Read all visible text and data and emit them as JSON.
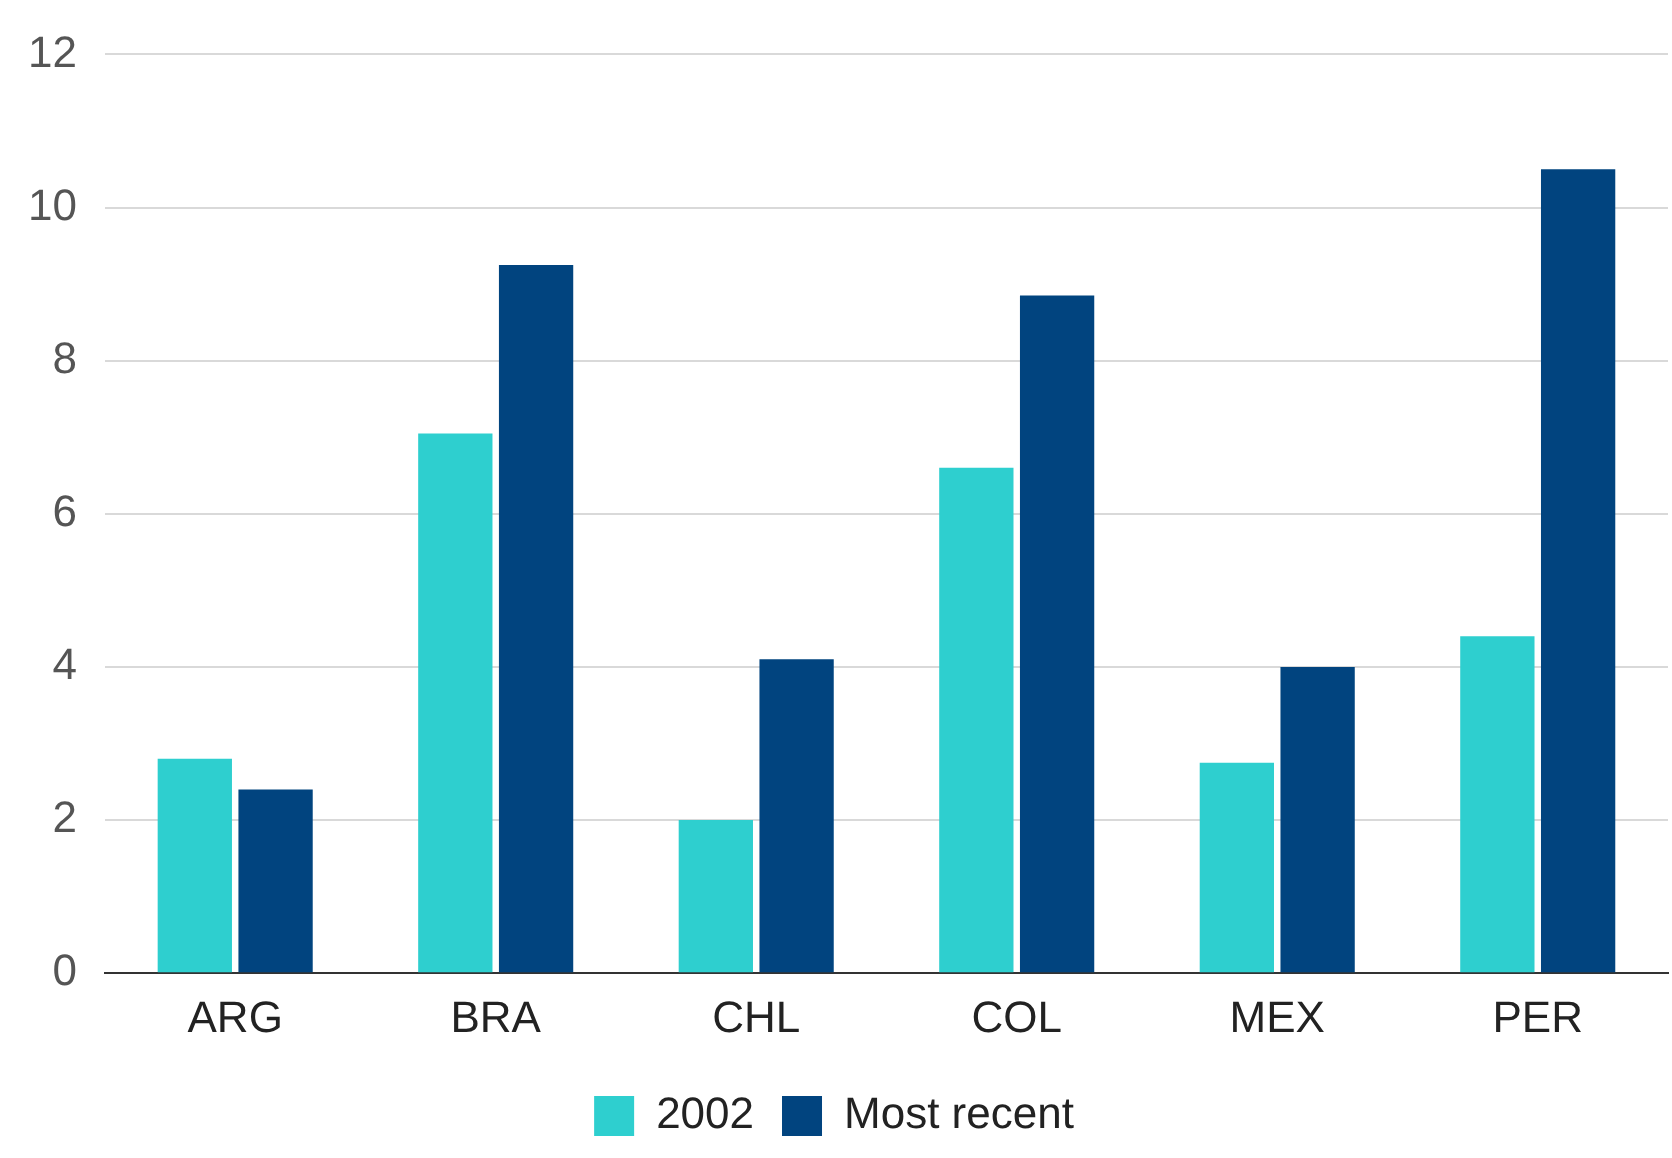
{
  "chart_data": {
    "type": "bar",
    "categories": [
      "ARG",
      "BRA",
      "CHL",
      "COL",
      "MEX",
      "PER"
    ],
    "series": [
      {
        "name": "2002",
        "color": "#2ecfcf",
        "values": [
          2.8,
          7.05,
          2.0,
          6.6,
          2.75,
          4.4
        ]
      },
      {
        "name": "Most recent",
        "color": "#01447f",
        "values": [
          2.4,
          9.25,
          4.1,
          8.85,
          4.0,
          10.5
        ]
      }
    ],
    "ylim": [
      0,
      12
    ],
    "yticks": [
      0,
      2,
      4,
      6,
      8,
      10,
      12
    ],
    "grid": "y",
    "legend": "bottom"
  }
}
